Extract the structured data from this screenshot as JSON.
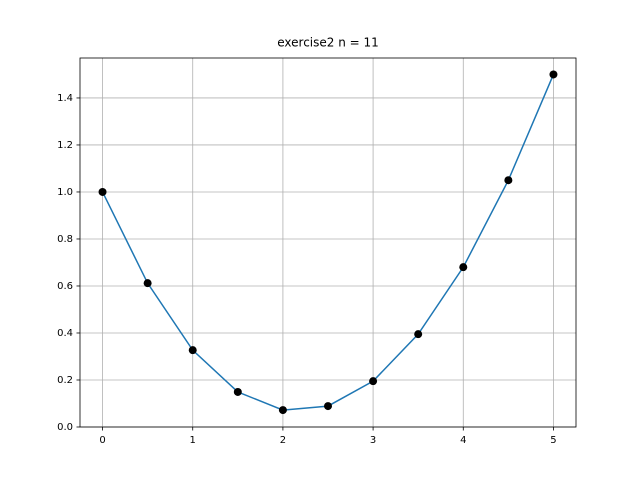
{
  "chart_data": {
    "type": "line",
    "title": "exercise2 n = 11",
    "x": [
      0,
      0.5,
      1,
      1.5,
      2,
      2.5,
      3,
      3.5,
      4,
      4.5,
      5
    ],
    "series": [
      {
        "color": "#1f77b4",
        "marker_color": "#000000",
        "values": [
          1.0,
          0.612,
          0.327,
          0.149,
          0.072,
          0.089,
          0.195,
          0.395,
          0.68,
          1.05,
          1.5
        ]
      }
    ],
    "xlim": [
      -0.25,
      5.25
    ],
    "xticks": [
      0,
      1,
      2,
      3,
      4,
      5
    ],
    "ylim": [
      0,
      1.57
    ],
    "yticks": [
      {
        "value": 0,
        "label": "0.0"
      },
      {
        "value": 0.2,
        "label": "0.2"
      },
      {
        "value": 0.4,
        "label": "0.4"
      },
      {
        "value": 0.6,
        "label": "0.6"
      },
      {
        "value": 0.8,
        "label": "0.8"
      },
      {
        "value": 1.0,
        "label": "1.0"
      },
      {
        "value": 1.2,
        "label": "1.2"
      },
      {
        "value": 1.4,
        "label": "1.4"
      }
    ],
    "grid": true
  }
}
